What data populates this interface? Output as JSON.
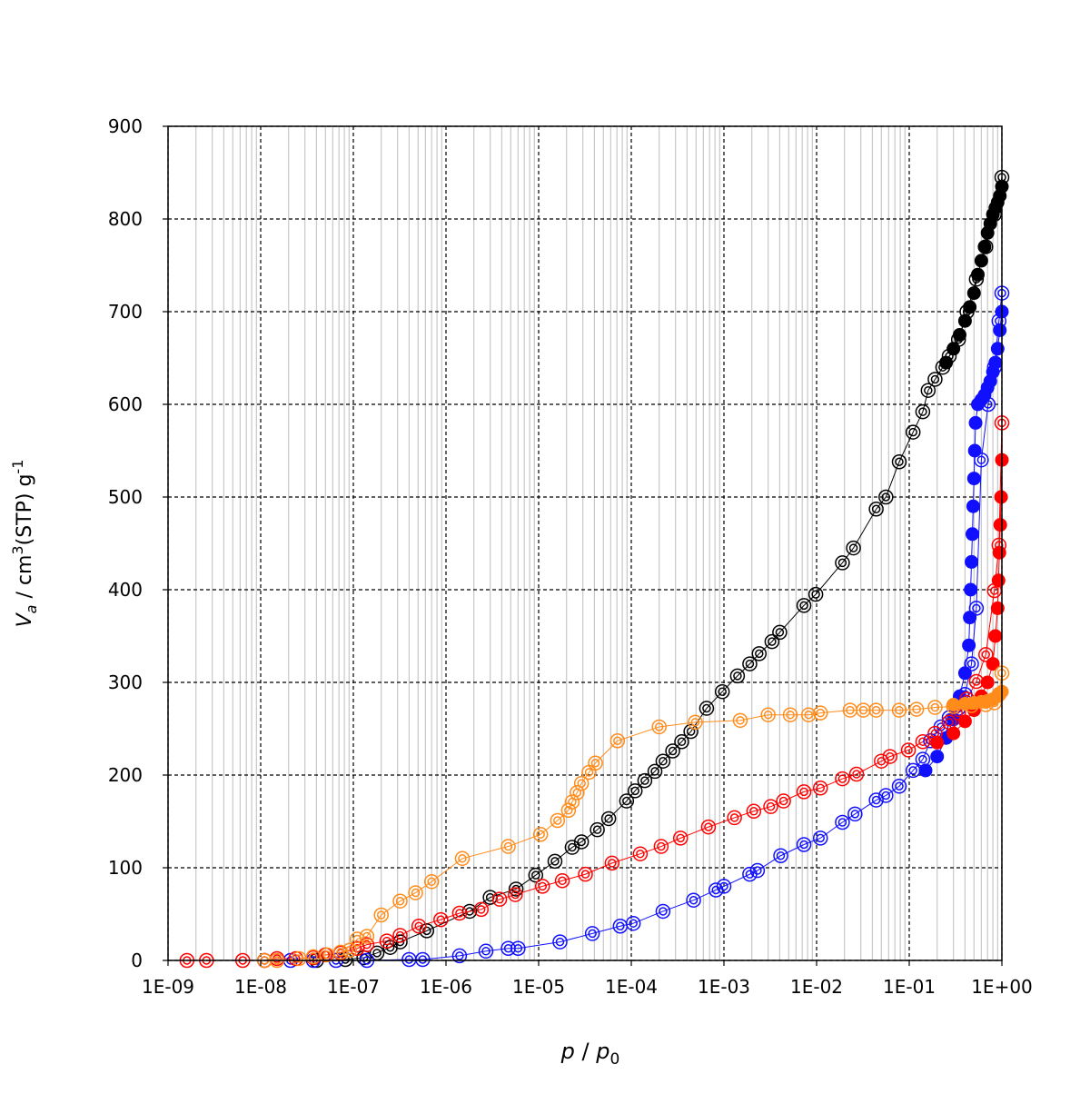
{
  "chart_data": {
    "type": "scatter",
    "xlabel": [
      "p",
      " / ",
      "p",
      "0"
    ],
    "ylabel": [
      "V",
      "a",
      " / cm",
      "3",
      "(STP) g",
      "-1"
    ],
    "xscale": "log",
    "xlim": [
      1e-09,
      1
    ],
    "xticks": [
      {
        "value": 1e-09,
        "label": "1E-09"
      },
      {
        "value": 1e-08,
        "label": "1E-08"
      },
      {
        "value": 1e-07,
        "label": "1E-07"
      },
      {
        "value": 1e-06,
        "label": "1E-06"
      },
      {
        "value": 1e-05,
        "label": "1E-05"
      },
      {
        "value": 0.0001,
        "label": "1E-04"
      },
      {
        "value": 0.001,
        "label": "1E-03"
      },
      {
        "value": 0.01,
        "label": "1E-02"
      },
      {
        "value": 0.1,
        "label": "1E-01"
      },
      {
        "value": 1,
        "label": "1E+00"
      }
    ],
    "ylim": [
      0,
      900
    ],
    "yticks": [
      0,
      100,
      200,
      300,
      400,
      500,
      600,
      700,
      800,
      900
    ],
    "grid": true,
    "minor_grid": true,
    "series": [
      {
        "color": "#000000",
        "marker": "open",
        "x": [
          4e-08,
          8.2e-08,
          1.3e-07,
          1.8e-07,
          2.5e-07,
          3.2e-07,
          6.2e-07,
          1.8e-06,
          3e-06,
          5.7e-06,
          9.3e-06,
          1.5e-05,
          2.3e-05,
          2.9e-05,
          4.3e-05,
          5.7e-05,
          8.9e-05,
          0.00011,
          0.00014,
          0.00018,
          0.00022,
          0.00028,
          0.00035,
          0.00044,
          0.00065,
          0.00096,
          0.0014,
          0.0019,
          0.0024,
          0.0033,
          0.004,
          0.0073,
          0.0098,
          0.019,
          0.025,
          0.044,
          0.056,
          0.078,
          0.11,
          0.14,
          0.16,
          0.19,
          0.23,
          0.27,
          0.34,
          0.42,
          0.53,
          0.67,
          0.83,
          1.0
        ],
        "values": [
          0,
          1,
          3,
          8,
          14,
          20,
          32,
          53,
          68,
          77,
          92,
          107,
          122,
          128,
          141,
          153,
          172,
          183,
          194,
          204,
          215,
          226,
          236,
          247,
          272,
          290,
          307,
          320,
          331,
          344,
          354,
          383,
          395,
          429,
          445,
          487,
          500,
          538,
          570,
          592,
          615,
          627,
          640,
          652,
          670,
          700,
          735,
          770,
          805,
          845
        ]
      },
      {
        "color": "#000000",
        "marker": "filled",
        "x": [
          1.0,
          0.95,
          0.9,
          0.85,
          0.8,
          0.75,
          0.7,
          0.65,
          0.6,
          0.55,
          0.5,
          0.45,
          0.4,
          0.35,
          0.3,
          0.25
        ],
        "values": [
          835,
          825,
          818,
          812,
          805,
          795,
          785,
          770,
          755,
          740,
          720,
          705,
          690,
          675,
          660,
          645
        ]
      },
      {
        "color": "#1010ff",
        "marker": "open",
        "x": [
          1.1e-08,
          2.1e-08,
          3.7e-08,
          6.5e-08,
          1.4e-07,
          4e-07,
          5.6e-07,
          1.4e-06,
          2.7e-06,
          4.7e-06,
          6e-06,
          1.7e-05,
          3.8e-05,
          7.6e-05,
          0.000105,
          0.00022,
          0.00047,
          0.00082,
          0.001,
          0.0019,
          0.0023,
          0.0041,
          0.0073,
          0.011,
          0.019,
          0.026,
          0.044,
          0.056,
          0.078,
          0.11,
          0.14,
          0.17,
          0.22,
          0.27,
          0.34,
          0.4,
          0.47,
          0.53,
          0.6,
          0.71,
          0.83,
          0.93,
          1.0
        ],
        "values": [
          0,
          0,
          0,
          0,
          0,
          1,
          1,
          5,
          10,
          13,
          13,
          20,
          29,
          37,
          40,
          53,
          65,
          76,
          80,
          93,
          97,
          113,
          125,
          132,
          149,
          158,
          173,
          178,
          188,
          205,
          217,
          237,
          252,
          262,
          272,
          287,
          320,
          380,
          540,
          600,
          640,
          690,
          720
        ]
      },
      {
        "color": "#1010ff",
        "marker": "filled",
        "x": [
          1.0,
          0.95,
          0.9,
          0.85,
          0.8,
          0.75,
          0.7,
          0.65,
          0.6,
          0.55,
          0.52,
          0.51,
          0.5,
          0.49,
          0.48,
          0.47,
          0.46,
          0.45,
          0.44,
          0.4,
          0.35,
          0.3,
          0.25,
          0.2,
          0.15
        ],
        "values": [
          700,
          680,
          660,
          645,
          635,
          625,
          618,
          610,
          605,
          600,
          580,
          550,
          520,
          490,
          460,
          430,
          400,
          370,
          340,
          310,
          285,
          260,
          240,
          220,
          205
        ]
      },
      {
        "color": "#ff0000",
        "marker": "open",
        "x": [
          1.6e-09,
          2.6e-09,
          6.4e-09,
          1.1e-08,
          1.5e-08,
          2.4e-08,
          3.7e-08,
          5e-08,
          7.3e-08,
          1.1e-07,
          1.4e-07,
          2.3e-07,
          3.2e-07,
          5.1e-07,
          8.8e-07,
          1.4e-06,
          2.4e-06,
          3.8e-06,
          5.6e-06,
          1.1e-05,
          1.8e-05,
          3.2e-05,
          6.2e-05,
          0.000125,
          0.00021,
          0.00034,
          0.00068,
          0.0013,
          0.0021,
          0.0032,
          0.0044,
          0.0073,
          0.011,
          0.019,
          0.027,
          0.05,
          0.062,
          0.098,
          0.14,
          0.19,
          0.27,
          0.34,
          0.42,
          0.53,
          0.67,
          0.83,
          0.93,
          1.0
        ],
        "values": [
          0,
          0,
          0,
          0,
          2,
          2,
          3,
          6,
          8,
          13,
          17,
          21,
          27,
          37,
          44,
          51,
          55,
          66,
          71,
          80,
          86,
          93,
          105,
          115,
          123,
          132,
          144,
          154,
          161,
          166,
          172,
          182,
          186,
          196,
          201,
          215,
          220,
          227,
          236,
          245,
          257,
          267,
          282,
          301,
          330,
          399,
          448,
          580
        ]
      },
      {
        "color": "#ff0000",
        "marker": "filled",
        "x": [
          1.0,
          0.98,
          0.96,
          0.94,
          0.92,
          0.9,
          0.85,
          0.8,
          0.7,
          0.6,
          0.5,
          0.4,
          0.3,
          0.2
        ],
        "values": [
          540,
          500,
          470,
          440,
          410,
          380,
          350,
          320,
          300,
          285,
          270,
          258,
          245,
          235
        ]
      },
      {
        "color": "#ff8c1a",
        "marker": "open",
        "x": [
          1.1e-08,
          1.5e-08,
          2.6e-08,
          3.7e-08,
          5.2e-08,
          7.3e-08,
          9.1e-08,
          1.1e-07,
          1.4e-07,
          2e-07,
          3.2e-07,
          4.7e-07,
          7e-07,
          1.5e-06,
          4.7e-06,
          1.05e-05,
          1.6e-05,
          2.1e-05,
          2.3e-05,
          2.6e-05,
          2.9e-05,
          3.5e-05,
          4.1e-05,
          7.1e-05,
          0.0002,
          0.00049,
          0.0015,
          0.003,
          0.0052,
          0.0082,
          0.011,
          0.023,
          0.032,
          0.044,
          0.078,
          0.12,
          0.19,
          0.3,
          0.47,
          0.67,
          0.83,
          0.93,
          1.0
        ],
        "values": [
          0,
          0,
          2,
          4,
          6,
          9,
          11,
          23,
          26,
          49,
          64,
          73,
          85,
          110,
          123,
          136,
          151,
          162,
          171,
          181,
          191,
          203,
          213,
          237,
          252,
          257,
          259,
          265,
          265,
          265,
          267,
          270,
          270,
          270,
          270,
          271,
          273,
          274,
          275,
          276,
          278,
          287,
          310
        ]
      },
      {
        "color": "#ff8c1a",
        "marker": "filled",
        "x": [
          1.0,
          0.9,
          0.8,
          0.7,
          0.6,
          0.5,
          0.4,
          0.3
        ],
        "values": [
          290,
          285,
          282,
          280,
          279,
          278,
          277,
          276
        ]
      }
    ]
  }
}
